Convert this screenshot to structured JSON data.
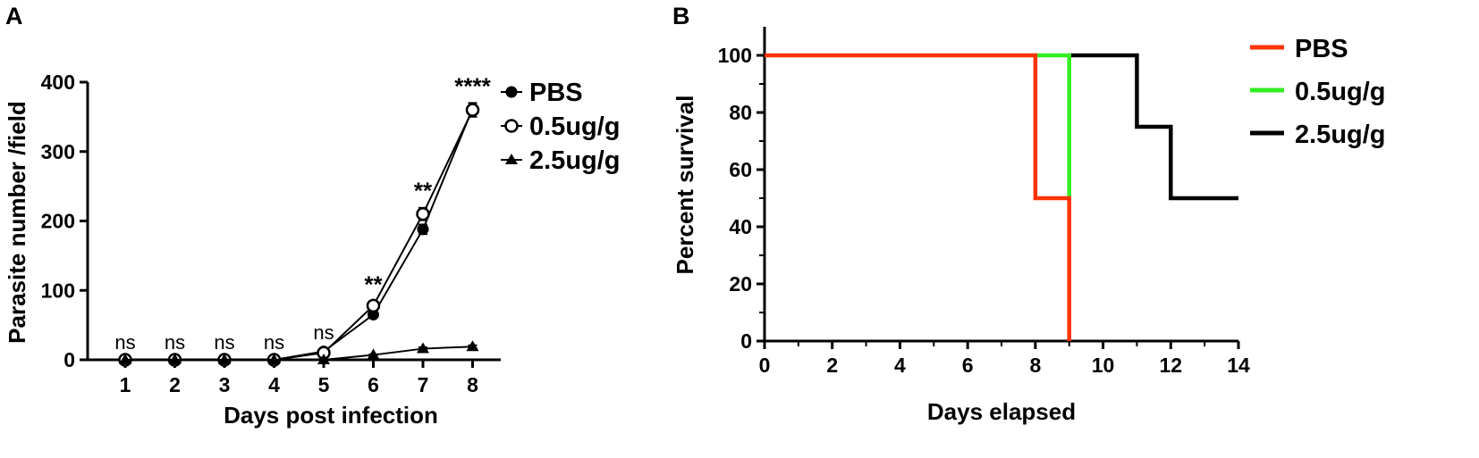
{
  "chart_data": [
    {
      "panel": "A",
      "type": "line",
      "xlabel": "Days post infection",
      "ylabel": "Parasite number /field",
      "categories": [
        "1",
        "2",
        "3",
        "4",
        "5",
        "6",
        "7",
        "8"
      ],
      "ylim": [
        0,
        400
      ],
      "yticks": [
        "0",
        "100",
        "200",
        "300",
        "400"
      ],
      "grid": false,
      "legend_position": "top-right",
      "series": [
        {
          "name": "PBS",
          "marker": "filled-circle",
          "values": [
            0,
            0,
            0,
            0,
            12,
            65,
            188,
            362
          ],
          "errors": [
            0,
            0,
            0,
            0,
            2,
            4,
            7,
            8
          ]
        },
        {
          "name": "0.5ug/g",
          "marker": "open-circle",
          "values": [
            0,
            0,
            0,
            0,
            10,
            78,
            210,
            360
          ],
          "errors": [
            0,
            0,
            0,
            0,
            2,
            6,
            9,
            10
          ]
        },
        {
          "name": "2.5ug/g",
          "marker": "filled-triangle",
          "values": [
            0,
            0,
            0,
            0,
            0,
            7,
            16,
            19
          ],
          "errors": [
            0,
            0,
            0,
            0,
            0,
            1,
            2,
            2
          ]
        }
      ],
      "annotations": [
        {
          "x": "1",
          "text": "ns"
        },
        {
          "x": "2",
          "text": "ns"
        },
        {
          "x": "3",
          "text": "ns"
        },
        {
          "x": "4",
          "text": "ns"
        },
        {
          "x": "5",
          "text": "ns"
        },
        {
          "x": "6",
          "text": "**"
        },
        {
          "x": "7",
          "text": "**"
        },
        {
          "x": "8",
          "text": "****"
        }
      ]
    },
    {
      "panel": "B",
      "type": "line",
      "subtype": "step",
      "xlabel": "Days elapsed",
      "ylabel": "Percent survival",
      "xlim": [
        0,
        14
      ],
      "ylim": [
        0,
        100
      ],
      "xticks": [
        "0",
        "2",
        "4",
        "6",
        "8",
        "10",
        "12",
        "14"
      ],
      "yticks": [
        "0",
        "20",
        "40",
        "60",
        "80",
        "100"
      ],
      "grid": false,
      "legend_position": "top-right",
      "series": [
        {
          "name": "PBS",
          "color": "#ff3300",
          "x": [
            0,
            8,
            8,
            9,
            9
          ],
          "y": [
            100,
            100,
            50,
            50,
            0
          ]
        },
        {
          "name": "0.5ug/g",
          "color": "#33ee22",
          "x": [
            8,
            9,
            9
          ],
          "y": [
            100,
            100,
            50
          ]
        },
        {
          "name": "2.5ug/g",
          "color": "#000000",
          "x": [
            9,
            11,
            11,
            12,
            12,
            14
          ],
          "y": [
            100,
            100,
            75,
            75,
            50,
            50
          ]
        }
      ]
    }
  ]
}
